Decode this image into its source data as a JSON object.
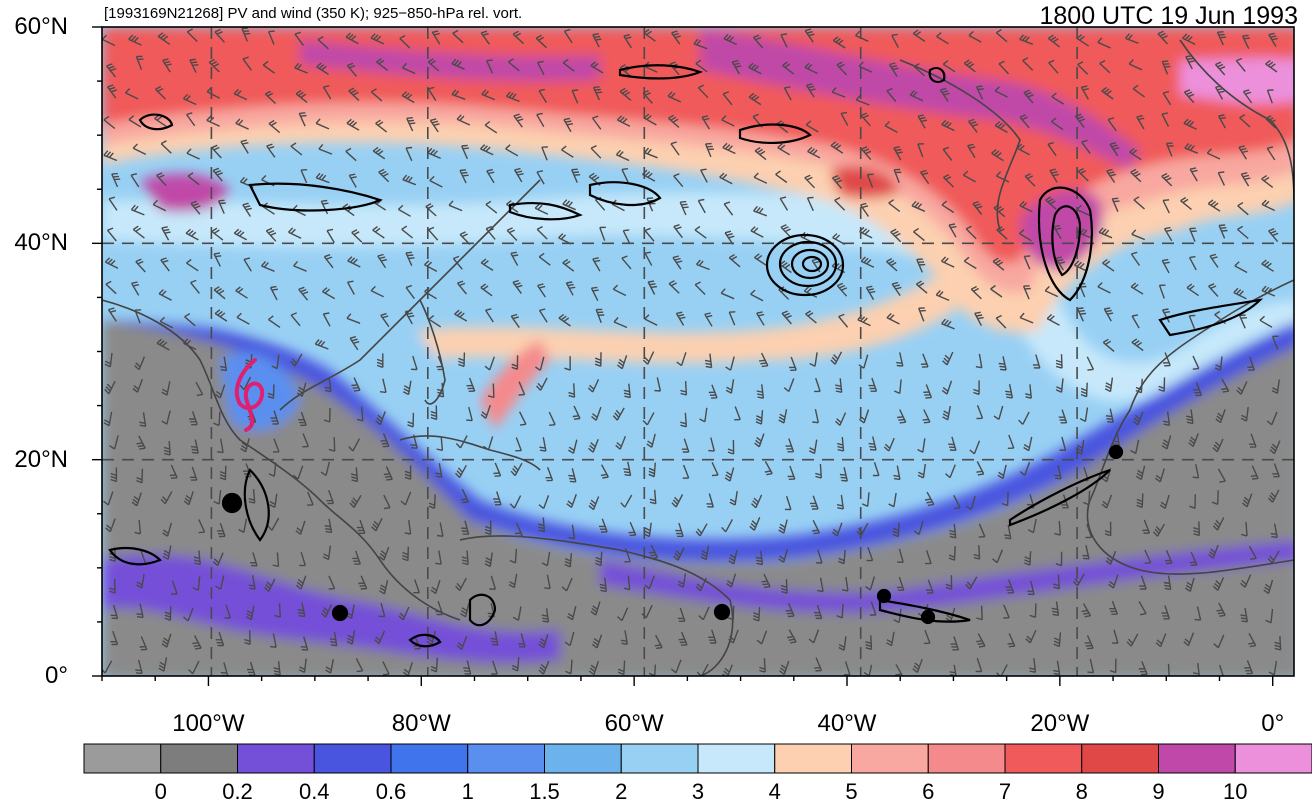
{
  "header": {
    "left_title": "[1993169N21268] PV and wind (350 K); 925−850-hPa rel. vort.",
    "right_title": "1800 UTC 19 Jun 1993"
  },
  "map": {
    "lon_range": [
      -110,
      2
    ],
    "lat_range": [
      0,
      60
    ],
    "lat_labels": [
      {
        "lat": 60,
        "text": "60°N"
      },
      {
        "lat": 40,
        "text": "40°N"
      },
      {
        "lat": 20,
        "text": "20°N"
      },
      {
        "lat": 0,
        "text": "0°"
      }
    ],
    "lon_labels": [
      {
        "lon": -100,
        "text": "100°W"
      },
      {
        "lon": -80,
        "text": "80°W"
      },
      {
        "lon": -60,
        "text": "60°W"
      },
      {
        "lon": -40,
        "text": "40°W"
      },
      {
        "lon": -20,
        "text": "20°W"
      },
      {
        "lon": 0,
        "text": "0°"
      }
    ],
    "track_color": "#e0206e"
  },
  "colorbar": {
    "colors": [
      "#9b9b9b",
      "#7d7d7d",
      "#7450d8",
      "#4a55df",
      "#3f74ec",
      "#5a8ff0",
      "#6cb3ee",
      "#98d0f4",
      "#c6e8fa",
      "#fcd0b0",
      "#f8a8a0",
      "#f48a8c",
      "#f05a5a",
      "#e04848",
      "#c048a8",
      "#ec90dc"
    ],
    "labels": [
      "0",
      "0.2",
      "0.4",
      "0.6",
      "1",
      "1.5",
      "2",
      "3",
      "4",
      "5",
      "6",
      "7",
      "8",
      "9",
      "10"
    ]
  }
}
